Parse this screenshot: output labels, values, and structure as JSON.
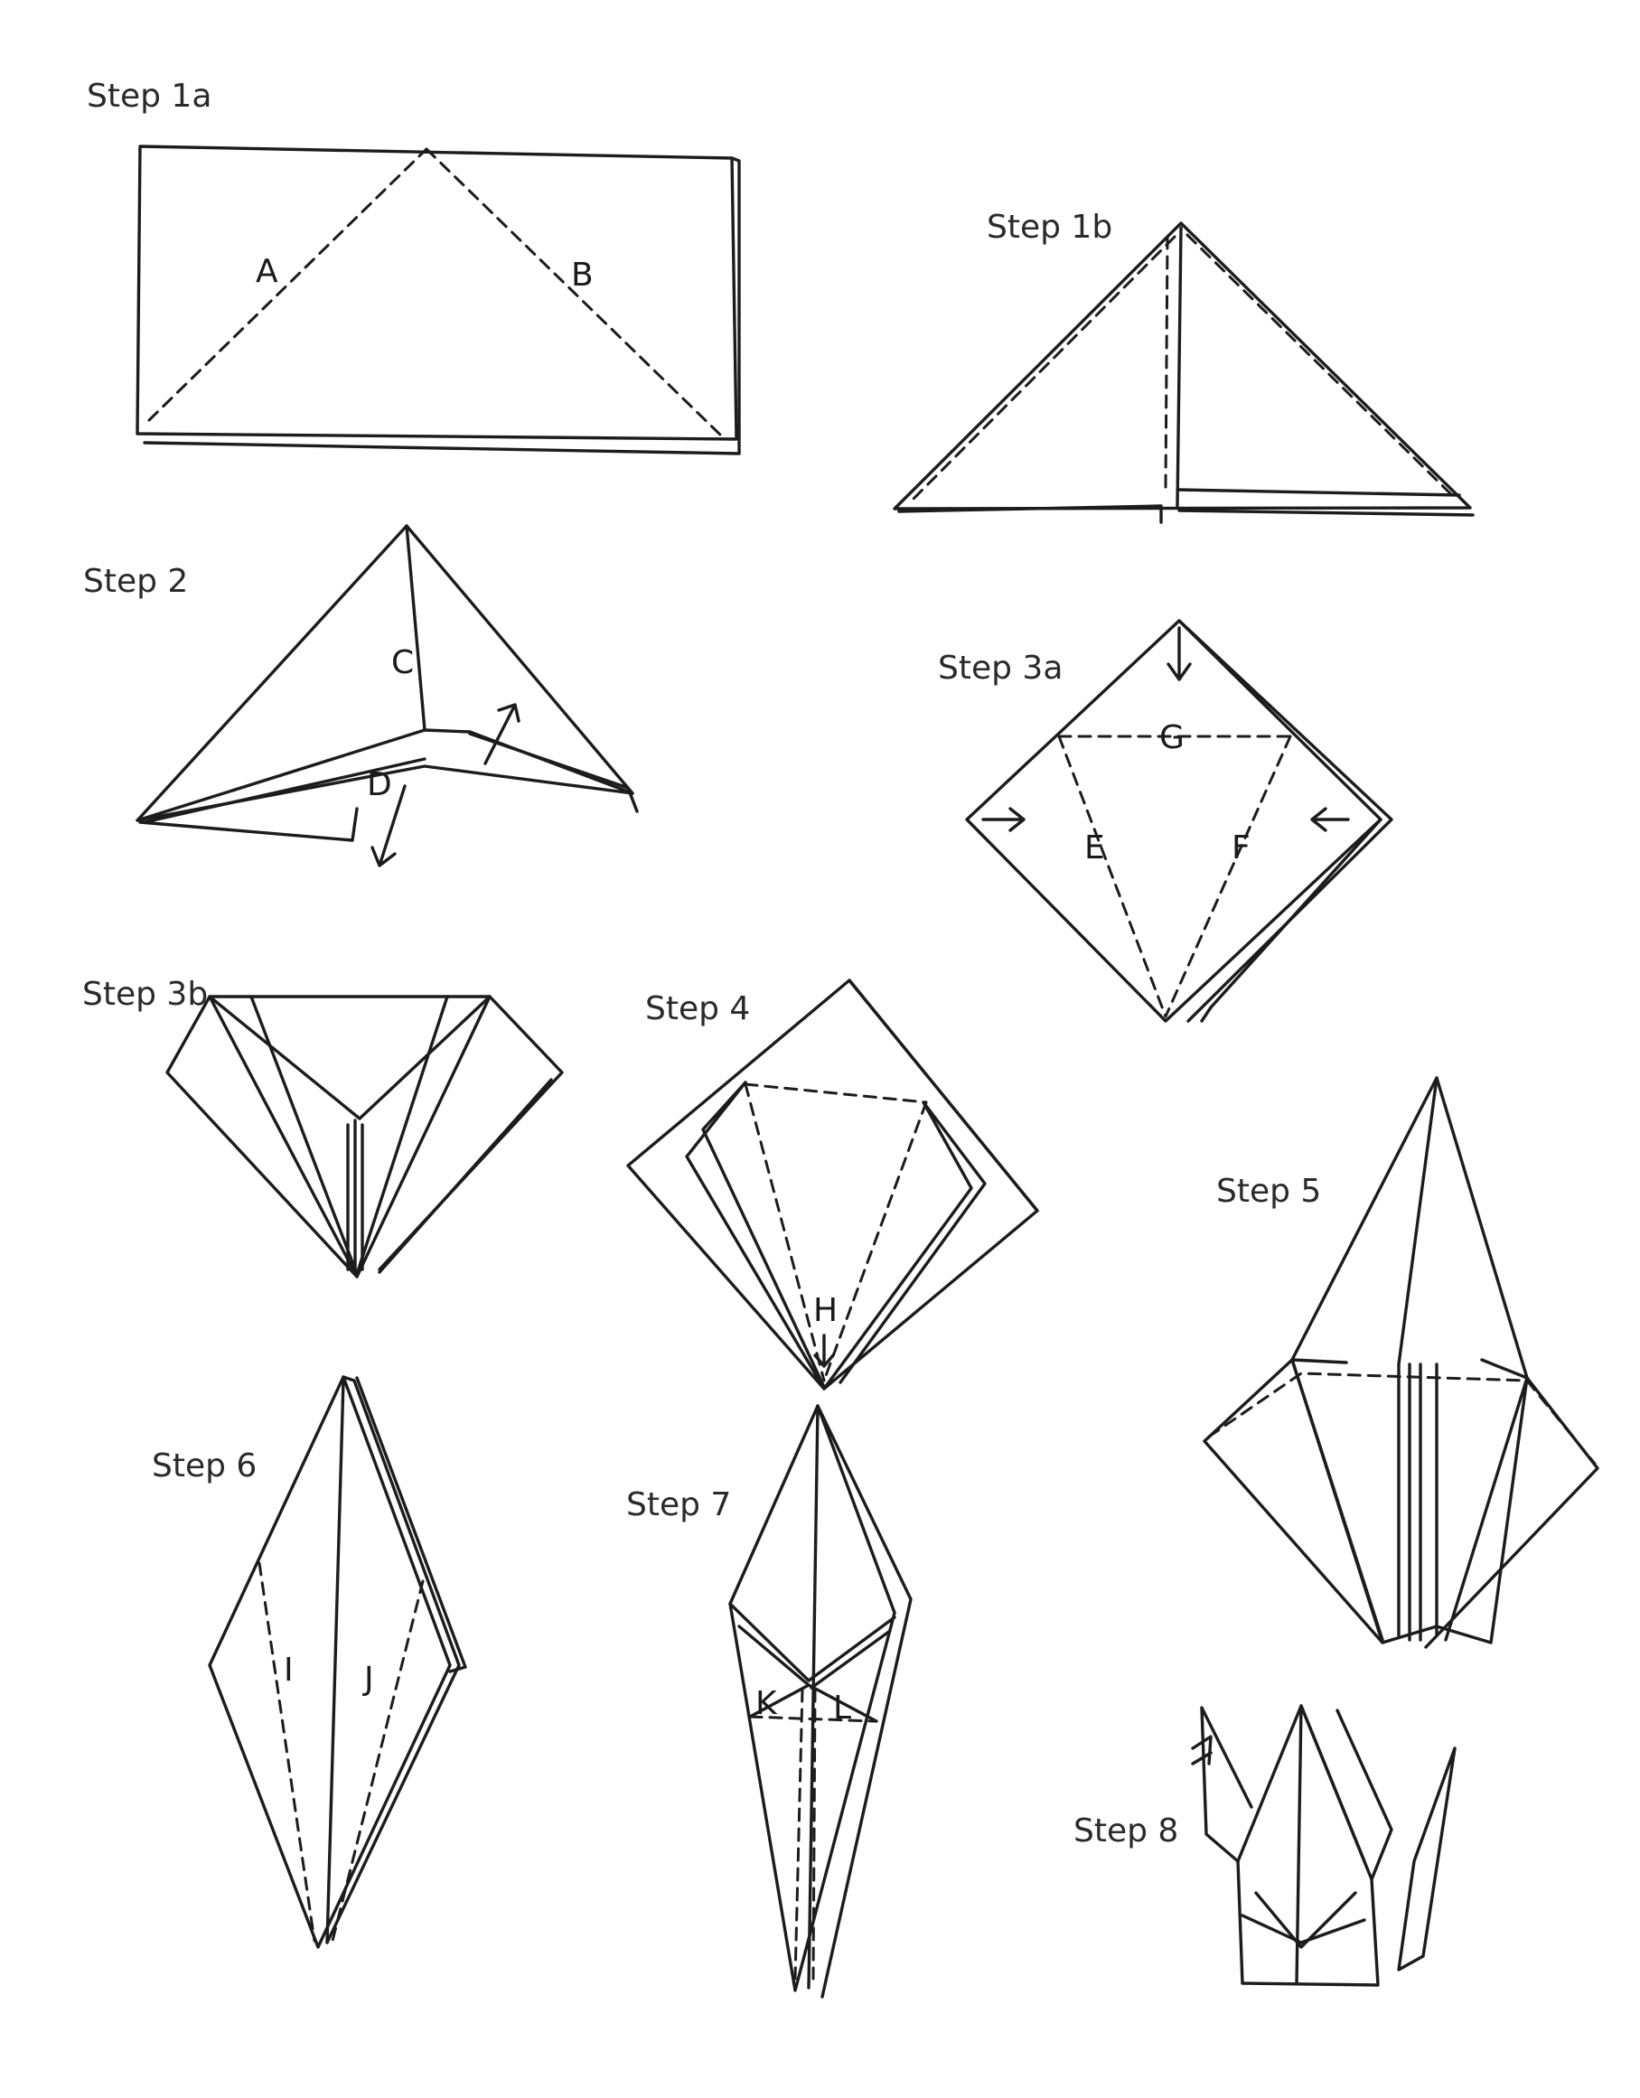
{
  "steps": [
    {
      "id": "1a",
      "title": "Step 1a",
      "fold_labels": [
        "A",
        "B"
      ]
    },
    {
      "id": "1b",
      "title": "Step 1b",
      "fold_labels": []
    },
    {
      "id": "2",
      "title": "Step 2",
      "fold_labels": [
        "C",
        "D"
      ]
    },
    {
      "id": "3a",
      "title": "Step 3a",
      "fold_labels": [
        "G",
        "E",
        "F"
      ]
    },
    {
      "id": "3b",
      "title": "Step 3b",
      "fold_labels": []
    },
    {
      "id": "4",
      "title": "Step 4",
      "fold_labels": [
        "H"
      ]
    },
    {
      "id": "5",
      "title": "Step 5",
      "fold_labels": []
    },
    {
      "id": "6",
      "title": "Step 6",
      "fold_labels": [
        "I",
        "J"
      ]
    },
    {
      "id": "7",
      "title": "Step 7",
      "fold_labels": [
        "K",
        "L"
      ]
    },
    {
      "id": "8",
      "title": "Step 8",
      "fold_labels": []
    }
  ]
}
